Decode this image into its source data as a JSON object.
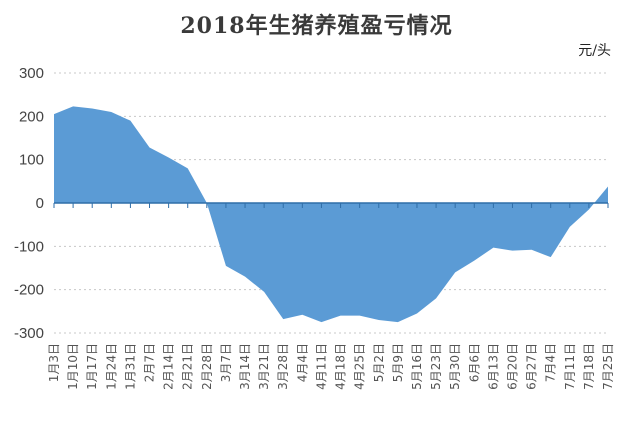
{
  "chart_data": {
    "type": "area",
    "title": "2018年生猪养殖盈亏情况",
    "unit": "元/头",
    "ylim": [
      -300,
      300
    ],
    "yticks": [
      300,
      200,
      100,
      0,
      -100,
      -200,
      -300
    ],
    "grid": true,
    "color": "#5B9BD5",
    "x": [
      "1月3日",
      "1月10日",
      "1月17日",
      "1月24日",
      "1月31日",
      "2月7日",
      "2月14日",
      "2月21日",
      "2月28日",
      "3月7日",
      "3月14日",
      "3月21日",
      "3月28日",
      "4月4日",
      "4月11日",
      "4月18日",
      "4月25日",
      "5月2日",
      "5月9日",
      "5月16日",
      "5月23日",
      "5月30日",
      "6月6日",
      "6月13日",
      "6月20日",
      "6月27日",
      "7月4日",
      "7月11日",
      "7月18日",
      "7月25日"
    ],
    "values": [
      205,
      223,
      218,
      210,
      190,
      128,
      105,
      80,
      0,
      -145,
      -170,
      -205,
      -268,
      -258,
      -275,
      -260,
      -260,
      -270,
      -275,
      -255,
      -220,
      -160,
      -133,
      -103,
      -110,
      -108,
      -125,
      -55,
      -15,
      38
    ]
  }
}
